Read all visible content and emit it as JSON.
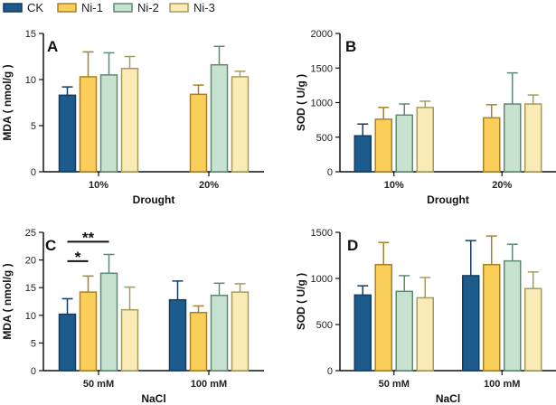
{
  "legend": {
    "entries": [
      {
        "label": "CK",
        "color": "#1d5b8c"
      },
      {
        "label": "Ni-1",
        "color": "#f9cf5a"
      },
      {
        "label": "Ni-2",
        "color": "#c7e3cf"
      },
      {
        "label": "Ni-3",
        "color": "#f9eab6"
      }
    ]
  },
  "colors": {
    "edges": [
      "#123c63",
      "#a8822a",
      "#5c8a74",
      "#a49c5d"
    ]
  },
  "chart_data": [
    {
      "id": "A",
      "panel_label": "A",
      "type": "bar",
      "xlabel": "Drought",
      "ylabel": "MDA ( nmol/g )",
      "ylim": [
        0,
        15
      ],
      "yticks": [
        "0",
        "5",
        "10",
        "15"
      ],
      "categories": [
        "10%",
        "20%"
      ],
      "series": [
        {
          "name": "CK",
          "values": [
            8.3,
            null
          ],
          "errors": [
            0.9,
            null
          ]
        },
        {
          "name": "Ni-1",
          "values": [
            10.3,
            8.4
          ],
          "errors": [
            2.7,
            1.0
          ]
        },
        {
          "name": "Ni-2",
          "values": [
            10.5,
            11.6
          ],
          "errors": [
            2.4,
            2.0
          ]
        },
        {
          "name": "Ni-3",
          "values": [
            11.2,
            10.3
          ],
          "errors": [
            1.3,
            0.6
          ]
        }
      ],
      "annotations": []
    },
    {
      "id": "B",
      "panel_label": "B",
      "type": "bar",
      "xlabel": "Drought",
      "ylabel": "SOD ( U/g )",
      "ylim": [
        0,
        2000
      ],
      "yticks": [
        "0",
        "500",
        "1000",
        "1500",
        "2000"
      ],
      "categories": [
        "10%",
        "20%"
      ],
      "series": [
        {
          "name": "CK",
          "values": [
            520,
            null
          ],
          "errors": [
            170,
            null
          ]
        },
        {
          "name": "Ni-1",
          "values": [
            760,
            780
          ],
          "errors": [
            170,
            190
          ]
        },
        {
          "name": "Ni-2",
          "values": [
            820,
            980
          ],
          "errors": [
            160,
            450
          ]
        },
        {
          "name": "Ni-3",
          "values": [
            930,
            980
          ],
          "errors": [
            90,
            130
          ]
        }
      ],
      "annotations": []
    },
    {
      "id": "C",
      "panel_label": "C",
      "type": "bar",
      "xlabel": "NaCl",
      "ylabel": "MDA ( nmol/g )",
      "ylim": [
        0,
        25
      ],
      "yticks": [
        "0",
        "5",
        "10",
        "15",
        "20",
        "25"
      ],
      "categories": [
        "50 mM",
        "100 mM"
      ],
      "series": [
        {
          "name": "CK",
          "values": [
            10.2,
            12.8
          ],
          "errors": [
            2.8,
            3.4
          ]
        },
        {
          "name": "Ni-1",
          "values": [
            14.2,
            10.5
          ],
          "errors": [
            2.9,
            1.2
          ]
        },
        {
          "name": "Ni-2",
          "values": [
            17.6,
            13.6
          ],
          "errors": [
            3.4,
            2.2
          ]
        },
        {
          "name": "Ni-3",
          "values": [
            11.0,
            14.2
          ],
          "errors": [
            4.1,
            1.5
          ]
        }
      ],
      "annotations": [
        {
          "text": "**",
          "from_series": 0,
          "to_series": 2,
          "category": 0,
          "level": 23.3
        },
        {
          "text": "*",
          "from_series": 0,
          "to_series": 1,
          "category": 0,
          "level": 19.8
        }
      ]
    },
    {
      "id": "D",
      "panel_label": "D",
      "type": "bar",
      "xlabel": "NaCl",
      "ylabel": "SOD ( U/g )",
      "ylim": [
        0,
        1500
      ],
      "yticks": [
        "0",
        "500",
        "1000",
        "1500"
      ],
      "categories": [
        "50 mM",
        "100 mM"
      ],
      "series": [
        {
          "name": "CK",
          "values": [
            820,
            1030
          ],
          "errors": [
            100,
            380
          ]
        },
        {
          "name": "Ni-1",
          "values": [
            1150,
            1150
          ],
          "errors": [
            240,
            310
          ]
        },
        {
          "name": "Ni-2",
          "values": [
            860,
            1190
          ],
          "errors": [
            170,
            180
          ]
        },
        {
          "name": "Ni-3",
          "values": [
            790,
            890
          ],
          "errors": [
            220,
            180
          ]
        }
      ],
      "annotations": []
    }
  ]
}
